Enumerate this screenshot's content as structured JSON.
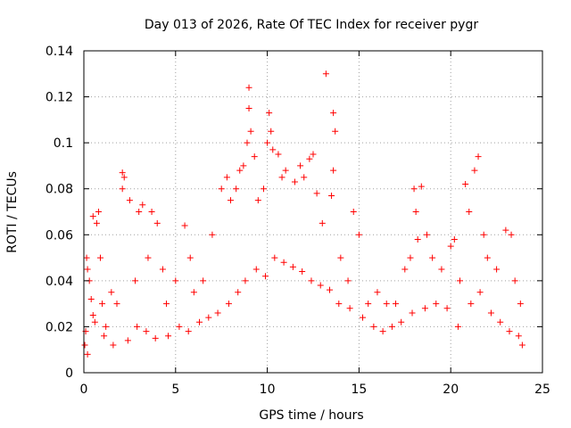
{
  "chart_data": {
    "type": "scatter",
    "title": "Day 013 of 2026, Rate Of TEC Index for receiver pygr",
    "xlabel": "GPS time / hours",
    "ylabel": "ROTI / TECUs",
    "xlim": [
      0,
      25
    ],
    "ylim": [
      0,
      0.14
    ],
    "xticks": [
      0,
      5,
      10,
      15,
      20,
      25
    ],
    "yticks": [
      0,
      0.02,
      0.04,
      0.06,
      0.08,
      0.1,
      0.12,
      0.14
    ],
    "xtick_labels": [
      "0",
      "5",
      "10",
      "15",
      "20",
      "25"
    ],
    "ytick_labels": [
      "0",
      "0.02",
      "0.04",
      "0.06",
      "0.08",
      "0.1",
      "0.12",
      "0.14"
    ],
    "grid": true,
    "marker": "plus",
    "color": "#ff0000",
    "points": [
      [
        0.05,
        0.012
      ],
      [
        0.1,
        0.018
      ],
      [
        0.15,
        0.05
      ],
      [
        0.2,
        0.045
      ],
      [
        0.3,
        0.04
      ],
      [
        0.4,
        0.032
      ],
      [
        0.5,
        0.025
      ],
      [
        0.5,
        0.068
      ],
      [
        0.7,
        0.065
      ],
      [
        0.8,
        0.07
      ],
      [
        0.9,
        0.05
      ],
      [
        1.0,
        0.03
      ],
      [
        1.2,
        0.02
      ],
      [
        1.5,
        0.035
      ],
      [
        1.8,
        0.03
      ],
      [
        2.1,
        0.087
      ],
      [
        2.2,
        0.085
      ],
      [
        2.1,
        0.08
      ],
      [
        2.5,
        0.075
      ],
      [
        2.8,
        0.04
      ],
      [
        3.0,
        0.07
      ],
      [
        3.2,
        0.073
      ],
      [
        3.5,
        0.05
      ],
      [
        3.7,
        0.07
      ],
      [
        4.0,
        0.065
      ],
      [
        4.3,
        0.045
      ],
      [
        4.5,
        0.03
      ],
      [
        5.0,
        0.04
      ],
      [
        5.5,
        0.064
      ],
      [
        5.8,
        0.05
      ],
      [
        6.0,
        0.035
      ],
      [
        6.5,
        0.04
      ],
      [
        7.0,
        0.06
      ],
      [
        7.5,
        0.08
      ],
      [
        7.8,
        0.085
      ],
      [
        8.0,
        0.075
      ],
      [
        8.3,
        0.08
      ],
      [
        8.5,
        0.088
      ],
      [
        8.7,
        0.09
      ],
      [
        8.9,
        0.1
      ],
      [
        9.0,
        0.124
      ],
      [
        9.0,
        0.115
      ],
      [
        9.1,
        0.105
      ],
      [
        9.3,
        0.094
      ],
      [
        9.5,
        0.075
      ],
      [
        9.8,
        0.08
      ],
      [
        10.0,
        0.1
      ],
      [
        10.1,
        0.113
      ],
      [
        10.2,
        0.105
      ],
      [
        10.3,
        0.097
      ],
      [
        10.6,
        0.095
      ],
      [
        10.8,
        0.085
      ],
      [
        11.0,
        0.088
      ],
      [
        11.5,
        0.083
      ],
      [
        11.8,
        0.09
      ],
      [
        12.0,
        0.085
      ],
      [
        12.3,
        0.093
      ],
      [
        12.5,
        0.095
      ],
      [
        12.7,
        0.078
      ],
      [
        13.0,
        0.065
      ],
      [
        13.2,
        0.13
      ],
      [
        13.6,
        0.113
      ],
      [
        13.7,
        0.105
      ],
      [
        13.6,
        0.088
      ],
      [
        13.5,
        0.077
      ],
      [
        14.0,
        0.05
      ],
      [
        14.4,
        0.04
      ],
      [
        14.7,
        0.07
      ],
      [
        15.0,
        0.06
      ],
      [
        15.5,
        0.03
      ],
      [
        16.0,
        0.035
      ],
      [
        16.5,
        0.03
      ],
      [
        17.0,
        0.03
      ],
      [
        17.5,
        0.045
      ],
      [
        17.8,
        0.05
      ],
      [
        18.0,
        0.08
      ],
      [
        18.1,
        0.07
      ],
      [
        18.2,
        0.058
      ],
      [
        18.4,
        0.081
      ],
      [
        18.7,
        0.06
      ],
      [
        19.0,
        0.05
      ],
      [
        19.5,
        0.045
      ],
      [
        20.0,
        0.055
      ],
      [
        20.2,
        0.058
      ],
      [
        20.5,
        0.04
      ],
      [
        20.8,
        0.082
      ],
      [
        21.0,
        0.07
      ],
      [
        21.3,
        0.088
      ],
      [
        21.5,
        0.094
      ],
      [
        21.8,
        0.06
      ],
      [
        22.0,
        0.05
      ],
      [
        22.5,
        0.045
      ],
      [
        23.0,
        0.062
      ],
      [
        23.3,
        0.06
      ],
      [
        23.5,
        0.04
      ],
      [
        23.8,
        0.03
      ],
      [
        0.2,
        0.008
      ],
      [
        0.6,
        0.022
      ],
      [
        1.1,
        0.016
      ],
      [
        1.6,
        0.012
      ],
      [
        2.4,
        0.014
      ],
      [
        2.9,
        0.02
      ],
      [
        3.4,
        0.018
      ],
      [
        3.9,
        0.015
      ],
      [
        4.6,
        0.016
      ],
      [
        5.2,
        0.02
      ],
      [
        5.7,
        0.018
      ],
      [
        6.3,
        0.022
      ],
      [
        6.8,
        0.024
      ],
      [
        7.3,
        0.026
      ],
      [
        7.9,
        0.03
      ],
      [
        8.4,
        0.035
      ],
      [
        8.8,
        0.04
      ],
      [
        9.4,
        0.045
      ],
      [
        9.9,
        0.042
      ],
      [
        10.4,
        0.05
      ],
      [
        10.9,
        0.048
      ],
      [
        11.4,
        0.046
      ],
      [
        11.9,
        0.044
      ],
      [
        12.4,
        0.04
      ],
      [
        12.9,
        0.038
      ],
      [
        13.4,
        0.036
      ],
      [
        13.9,
        0.03
      ],
      [
        14.5,
        0.028
      ],
      [
        15.2,
        0.024
      ],
      [
        15.8,
        0.02
      ],
      [
        16.3,
        0.018
      ],
      [
        16.8,
        0.02
      ],
      [
        17.3,
        0.022
      ],
      [
        17.9,
        0.026
      ],
      [
        18.6,
        0.028
      ],
      [
        19.2,
        0.03
      ],
      [
        19.8,
        0.028
      ],
      [
        20.4,
        0.02
      ],
      [
        21.1,
        0.03
      ],
      [
        21.6,
        0.035
      ],
      [
        22.2,
        0.026
      ],
      [
        22.7,
        0.022
      ],
      [
        23.2,
        0.018
      ],
      [
        23.7,
        0.016
      ],
      [
        23.9,
        0.012
      ]
    ]
  }
}
